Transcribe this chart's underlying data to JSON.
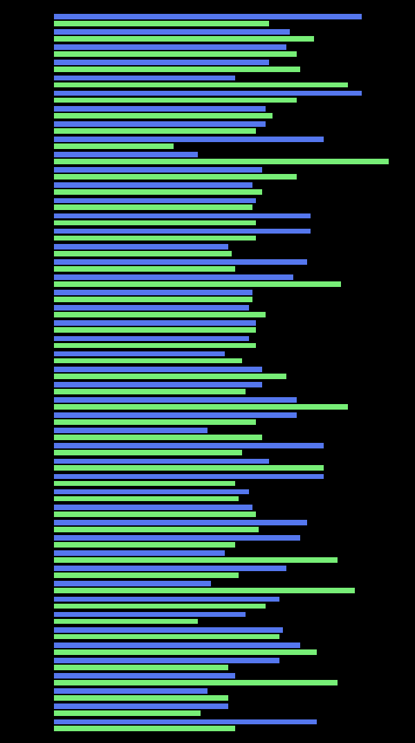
{
  "background_color": "#000000",
  "bar_color_blue": "#5577ee",
  "bar_color_green": "#77ee77",
  "figsize": [
    6.0,
    10.72
  ],
  "dpi": 100,
  "blue_vals": [
    450,
    345,
    340,
    315,
    265,
    450,
    310,
    310,
    395,
    210,
    305,
    290,
    295,
    375,
    375,
    255,
    370,
    350,
    290,
    285,
    295,
    285,
    250,
    305,
    305,
    355,
    355,
    225,
    395,
    315,
    395,
    285,
    290,
    370,
    360,
    250,
    340,
    230,
    330,
    280,
    335,
    360,
    330,
    265,
    225,
    255,
    385
  ],
  "green_vals": [
    315,
    380,
    355,
    360,
    430,
    355,
    320,
    295,
    175,
    490,
    355,
    305,
    290,
    295,
    295,
    260,
    265,
    420,
    290,
    310,
    295,
    295,
    275,
    340,
    280,
    430,
    295,
    305,
    275,
    395,
    265,
    270,
    295,
    300,
    265,
    415,
    270,
    440,
    310,
    210,
    330,
    385,
    255,
    415,
    255,
    215,
    265
  ]
}
